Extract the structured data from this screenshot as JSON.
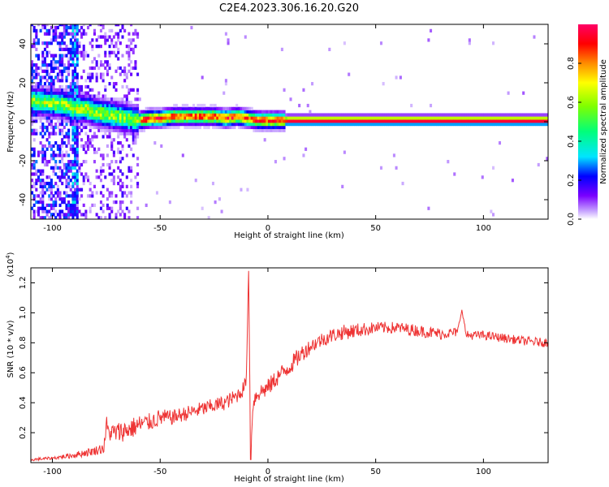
{
  "title": "C2E4.2023.306.16.20.G20",
  "chart_data": [
    {
      "type": "heatmap",
      "title": "C2E4.2023.306.16.20.G20",
      "xlabel": "Height of straight line (km)",
      "ylabel": "Frequency (Hz)",
      "xlim": [
        -110,
        130
      ],
      "ylim": [
        -50,
        50
      ],
      "x_ticks": [
        -100,
        -50,
        0,
        50,
        100
      ],
      "y_ticks": [
        -40,
        -20,
        0,
        20,
        40
      ],
      "colorbar": {
        "label": "Normalized spectral amplitude",
        "range": [
          0,
          1
        ],
        "ticks": [
          0.0,
          0.2,
          0.4,
          0.6,
          0.8
        ],
        "colors": [
          "#ffffff",
          "#c9a8ff",
          "#7a00ff",
          "#0000ff",
          "#00e5ff",
          "#00ff7a",
          "#80ff00",
          "#ffff00",
          "#ff8c00",
          "#ff0000",
          "#ff0066"
        ]
      },
      "ridge": {
        "description": "dominant frequency track",
        "x": [
          -110,
          -95,
          -90,
          -85,
          -80,
          -75,
          -70,
          -65,
          -60,
          -55,
          -50,
          -45,
          -40,
          -35,
          -30,
          -25,
          -20,
          -15,
          -10,
          -5,
          0,
          5,
          10,
          130
        ],
        "y": [
          10,
          8,
          6,
          6,
          4,
          3,
          2,
          1,
          0,
          1,
          1,
          2,
          2,
          2,
          2,
          2,
          1,
          2,
          1,
          0,
          0,
          0,
          0,
          0
        ]
      },
      "grid": false
    },
    {
      "type": "line",
      "xlabel": "Height of straight line (km)",
      "ylabel": "SNR (10 * v/v)",
      "y_multiplier_label": "(x10^4)",
      "xlim": [
        -110,
        130
      ],
      "ylim": [
        0,
        1.3
      ],
      "x_ticks": [
        -100,
        -50,
        0,
        50,
        100
      ],
      "y_ticks": [
        0.2,
        0.4,
        0.6,
        0.8,
        1.0,
        1.2
      ],
      "series": [
        {
          "color": "#ee3333",
          "x": [
            -110,
            -100,
            -90,
            -80,
            -76,
            -75,
            -74,
            -70,
            -65,
            -60,
            -55,
            -50,
            -45,
            -40,
            -35,
            -30,
            -25,
            -20,
            -15,
            -12,
            -10,
            -9,
            -8,
            -7,
            -5,
            0,
            5,
            10,
            15,
            20,
            25,
            30,
            35,
            40,
            50,
            60,
            70,
            80,
            88,
            90,
            92,
            100,
            110,
            120,
            130
          ],
          "y": [
            0.02,
            0.03,
            0.05,
            0.08,
            0.1,
            0.25,
            0.2,
            0.2,
            0.22,
            0.25,
            0.27,
            0.3,
            0.3,
            0.32,
            0.34,
            0.36,
            0.38,
            0.4,
            0.44,
            0.48,
            0.55,
            1.28,
            0.02,
            0.4,
            0.46,
            0.5,
            0.58,
            0.64,
            0.72,
            0.78,
            0.82,
            0.85,
            0.87,
            0.88,
            0.9,
            0.9,
            0.88,
            0.86,
            0.87,
            1.02,
            0.85,
            0.85,
            0.83,
            0.81,
            0.8
          ],
          "noise_amplitude": [
            0.01,
            0.01,
            0.02,
            0.03,
            0.04,
            0.08,
            0.06,
            0.07,
            0.07,
            0.07,
            0.06,
            0.06,
            0.05,
            0.05,
            0.05,
            0.05,
            0.05,
            0.05,
            0.05,
            0.05,
            0.04,
            0,
            0,
            0.06,
            0.06,
            0.06,
            0.06,
            0.06,
            0.06,
            0.05,
            0.05,
            0.05,
            0.05,
            0.05,
            0.04,
            0.04,
            0.04,
            0.04,
            0.03,
            0,
            0.03,
            0.03,
            0.03,
            0.03,
            0.03
          ]
        }
      ],
      "grid": false
    }
  ]
}
